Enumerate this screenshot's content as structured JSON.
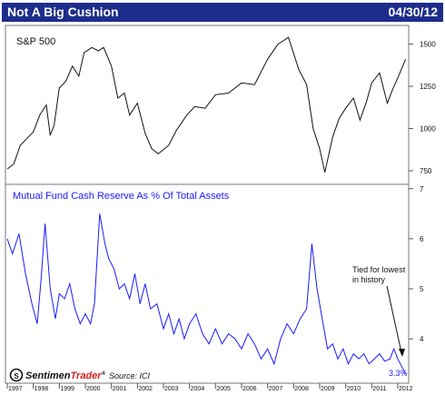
{
  "header": {
    "title": "Not A Big Cushion",
    "date": "04/30/12"
  },
  "colors": {
    "title_bg": "#1d2d8c",
    "title_text": "#ffffff",
    "sp_line": "#111111",
    "cash_line": "#1a1aff",
    "panel_border": "#777777",
    "brand_red": "#d21f1f"
  },
  "brand": {
    "icon": "sentimentrader-logo-icon",
    "name_prefix": "Sentimen",
    "name_suffix": "Trader",
    "registered": "®"
  },
  "source_note": "Source: ICI",
  "chart_data": [
    {
      "type": "line",
      "title": "S&P 500",
      "y_ticks": [
        750,
        1000,
        1250,
        1500
      ],
      "ylim": [
        680,
        1600
      ],
      "series": [
        {
          "name": "S&P 500",
          "x": [
            1997.0,
            1997.25,
            1997.5,
            1997.75,
            1998.0,
            1998.25,
            1998.5,
            1998.65,
            1998.8,
            1999.0,
            1999.25,
            1999.5,
            1999.75,
            1999.95,
            2000.25,
            2000.5,
            2000.7,
            2001.0,
            2001.25,
            2001.5,
            2001.7,
            2002.0,
            2002.3,
            2002.55,
            2002.8,
            2003.2,
            2003.5,
            2003.9,
            2004.2,
            2004.6,
            2005.0,
            2005.5,
            2006.0,
            2006.5,
            2007.0,
            2007.4,
            2007.8,
            2008.2,
            2008.5,
            2008.75,
            2009.0,
            2009.2,
            2009.5,
            2009.75,
            2010.0,
            2010.3,
            2010.55,
            2010.8,
            2011.0,
            2011.3,
            2011.6,
            2011.8,
            2012.0,
            2012.3
          ],
          "values": [
            760,
            790,
            900,
            940,
            980,
            1080,
            1140,
            960,
            1020,
            1240,
            1280,
            1370,
            1310,
            1450,
            1480,
            1460,
            1480,
            1370,
            1180,
            1210,
            1080,
            1150,
            970,
            880,
            850,
            900,
            990,
            1080,
            1130,
            1120,
            1200,
            1210,
            1270,
            1260,
            1410,
            1500,
            1540,
            1350,
            1260,
            1000,
            880,
            740,
            950,
            1060,
            1120,
            1180,
            1050,
            1160,
            1270,
            1330,
            1150,
            1230,
            1300,
            1410
          ]
        }
      ]
    },
    {
      "type": "line",
      "title": "Mutual Fund Cash Reserve As % Of Total Assets",
      "y_ticks": [
        4,
        5,
        6,
        7
      ],
      "ylim": [
        3.15,
        7.05
      ],
      "x_ticks": [
        1997,
        1998,
        1999,
        2000,
        2001,
        2002,
        2003,
        2004,
        2005,
        2006,
        2007,
        2008,
        2009,
        2010,
        2011,
        2012
      ],
      "series": [
        {
          "name": "Mutual Fund Cash Reserve",
          "x": [
            1997.0,
            1997.2,
            1997.45,
            1997.7,
            1997.95,
            1998.15,
            1998.3,
            1998.45,
            1998.65,
            1998.85,
            1999.0,
            1999.2,
            1999.4,
            1999.6,
            1999.8,
            2000.0,
            2000.2,
            2000.35,
            2000.55,
            2000.75,
            2000.9,
            2001.1,
            2001.3,
            2001.5,
            2001.7,
            2001.9,
            2002.1,
            2002.3,
            2002.5,
            2002.75,
            2003.0,
            2003.2,
            2003.4,
            2003.6,
            2003.8,
            2004.0,
            2004.25,
            2004.5,
            2004.75,
            2005.0,
            2005.25,
            2005.5,
            2005.75,
            2006.0,
            2006.25,
            2006.5,
            2006.75,
            2007.0,
            2007.25,
            2007.5,
            2007.75,
            2008.0,
            2008.25,
            2008.5,
            2008.7,
            2008.9,
            2009.1,
            2009.3,
            2009.5,
            2009.7,
            2009.9,
            2010.1,
            2010.3,
            2010.5,
            2010.7,
            2010.9,
            2011.1,
            2011.3,
            2011.5,
            2011.7,
            2011.85,
            2012.0,
            2012.3
          ],
          "values": [
            6.0,
            5.7,
            6.1,
            5.3,
            4.7,
            4.3,
            5.2,
            6.3,
            5.0,
            4.4,
            4.9,
            4.8,
            5.1,
            4.6,
            4.3,
            4.5,
            4.3,
            4.7,
            6.5,
            5.9,
            5.6,
            5.4,
            5.0,
            5.1,
            4.8,
            5.3,
            4.7,
            5.1,
            4.6,
            4.7,
            4.2,
            4.5,
            4.1,
            4.4,
            4.0,
            4.3,
            4.5,
            4.1,
            3.9,
            4.2,
            3.9,
            4.1,
            4.0,
            3.8,
            4.1,
            3.9,
            3.6,
            3.8,
            3.5,
            4.0,
            4.3,
            4.1,
            4.4,
            4.6,
            5.9,
            5.0,
            4.4,
            3.8,
            3.9,
            3.6,
            3.8,
            3.5,
            3.7,
            3.6,
            3.7,
            3.5,
            3.6,
            3.7,
            3.55,
            3.6,
            3.8,
            3.6,
            3.3
          ]
        }
      ],
      "annotations": [
        "Tied for lowest",
        "in history"
      ],
      "last_value_label": "3.3%"
    }
  ]
}
